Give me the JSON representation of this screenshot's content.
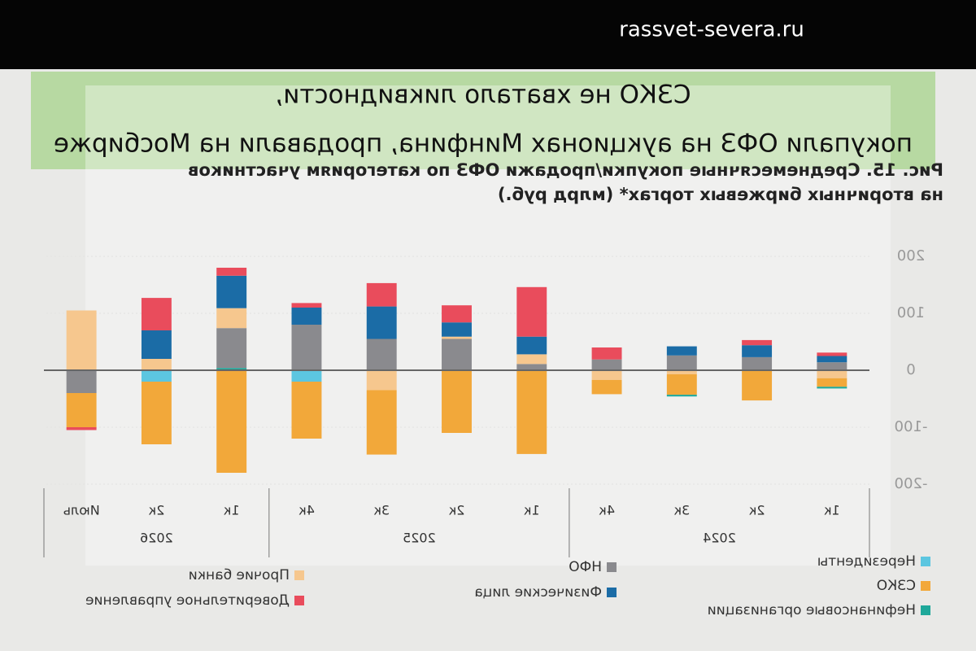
{
  "watermark": "rassvet-severa.ru",
  "chart_data": {
    "type": "bar",
    "stacked": true,
    "mirrored": true,
    "title": [
      "СЗКО не хватало ликвидности,",
      "покупали ОФЗ на аукционах Минфина, продавали на Мосбирже"
    ],
    "subtitle": [
      "Рис. 15. Среднемесячные покупки/продажи ОФЗ по категориям участников",
      "на вторичных биржевых торгах* (млрд руб.)"
    ],
    "groups": [
      {
        "label": "2024",
        "categories": [
          "1к",
          "2к",
          "3к",
          "4к"
        ]
      },
      {
        "label": "2025",
        "categories": [
          "1к",
          "2к",
          "3к",
          "4к"
        ]
      },
      {
        "label": "2026",
        "categories": [
          "1к",
          "2к",
          "Июль"
        ]
      }
    ],
    "ylim": [
      -200,
      200
    ],
    "yticks": [
      -200,
      -100,
      0,
      100,
      200
    ],
    "grid": true,
    "legend": "bottom",
    "series": [
      {
        "name": "Нерезиденты",
        "color": "#5cc6e0",
        "values": [
          0,
          0,
          0,
          0,
          0,
          0,
          0,
          -20,
          0,
          -20,
          0
        ]
      },
      {
        "name": "СЗКО",
        "color": "#f2a83a",
        "values": [
          -15,
          -53,
          -36,
          -25,
          -147,
          -110,
          -113,
          -100,
          -180,
          -110,
          -60
        ]
      },
      {
        "name": "Нефинансовые организации",
        "color": "#1fa89a",
        "values": [
          -3,
          0,
          -3,
          0,
          0,
          0,
          0,
          0,
          4,
          0,
          0
        ]
      },
      {
        "name": "НФО",
        "color": "#8a8a8e",
        "values": [
          14,
          23,
          26,
          19,
          11,
          55,
          55,
          80,
          70,
          0,
          -40
        ]
      },
      {
        "name": "Физические лица",
        "color": "#1b6ca6",
        "values": [
          11,
          21,
          16,
          0,
          31,
          25,
          57,
          30,
          57,
          50,
          0
        ]
      },
      {
        "name": "Прочие банки",
        "color": "#f6c78e",
        "values": [
          -14,
          0,
          -7,
          -17,
          17,
          4,
          -35,
          0,
          35,
          20,
          105
        ]
      },
      {
        "name": "Доверительное управление",
        "color": "#e94c5c",
        "values": [
          6,
          9,
          0,
          21,
          87,
          30,
          41,
          8,
          14,
          57,
          -5
        ]
      }
    ]
  }
}
